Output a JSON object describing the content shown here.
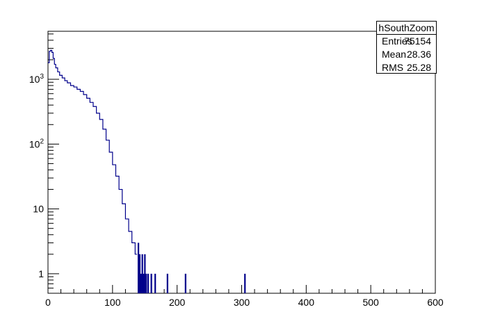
{
  "chart_data": {
    "type": "histogram",
    "title": "",
    "xlabel": "",
    "ylabel": "",
    "xlim": [
      0,
      600
    ],
    "ylim": [
      0.5,
      5500
    ],
    "yscale": "log",
    "line_color": "#00008b",
    "x_ticks": [
      0,
      100,
      200,
      300,
      400,
      500,
      600
    ],
    "y_ticks": [
      {
        "value": 1,
        "label": "1"
      },
      {
        "value": 10,
        "label": "10"
      },
      {
        "value": 100,
        "label": "10^2"
      },
      {
        "value": 1000,
        "label": "10^3"
      }
    ],
    "stats": {
      "title": "hSouthZoom",
      "entries_label": "Entries",
      "entries": "75154",
      "mean_label": "Mean",
      "mean": "28.36",
      "rms_label": "RMS",
      "rms": "25.28"
    },
    "curve": [
      [
        0,
        1800
      ],
      [
        2,
        2700
      ],
      [
        4,
        2800
      ],
      [
        6,
        2600
      ],
      [
        8,
        2100
      ],
      [
        10,
        1700
      ],
      [
        12,
        1500
      ],
      [
        15,
        1300
      ],
      [
        18,
        1150
      ],
      [
        22,
        1050
      ],
      [
        26,
        950
      ],
      [
        30,
        880
      ],
      [
        35,
        800
      ],
      [
        40,
        760
      ],
      [
        45,
        700
      ],
      [
        50,
        650
      ],
      [
        55,
        580
      ],
      [
        60,
        510
      ],
      [
        65,
        440
      ],
      [
        70,
        380
      ],
      [
        75,
        300
      ],
      [
        80,
        240
      ],
      [
        85,
        170
      ],
      [
        90,
        115
      ],
      [
        95,
        75
      ],
      [
        100,
        48
      ],
      [
        105,
        32
      ],
      [
        110,
        20
      ],
      [
        115,
        12
      ],
      [
        120,
        7
      ],
      [
        125,
        4.5
      ],
      [
        130,
        3
      ],
      [
        135,
        2
      ]
    ],
    "spikes": [
      {
        "x": 140,
        "y": 3
      },
      {
        "x": 142,
        "y": 2
      },
      {
        "x": 144,
        "y": 1
      },
      {
        "x": 146,
        "y": 2
      },
      {
        "x": 148,
        "y": 1
      },
      {
        "x": 150,
        "y": 2
      },
      {
        "x": 152,
        "y": 1
      },
      {
        "x": 155,
        "y": 1
      },
      {
        "x": 160,
        "y": 1
      },
      {
        "x": 166,
        "y": 1
      },
      {
        "x": 185,
        "y": 1
      },
      {
        "x": 213,
        "y": 1
      },
      {
        "x": 305,
        "y": 1
      }
    ]
  }
}
